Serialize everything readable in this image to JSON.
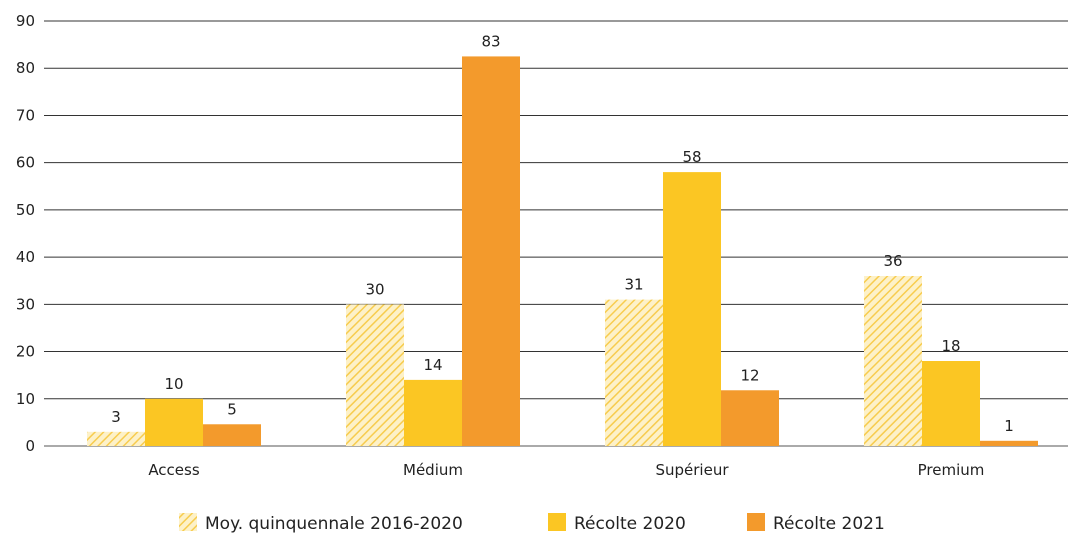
{
  "chart_data": {
    "type": "bar",
    "title": "",
    "xlabel": "",
    "ylabel": "",
    "ylim": [
      0,
      90
    ],
    "yticks": [
      0,
      10,
      20,
      30,
      40,
      50,
      60,
      70,
      80,
      90
    ],
    "grid": true,
    "legend_position": "bottom",
    "categories": [
      "Access",
      "Médium",
      "Supérieur",
      "Premium"
    ],
    "series": [
      {
        "name": "Moy. quinquennale 2016-2020",
        "values": [
          3,
          30,
          31,
          36
        ],
        "labels": [
          "3",
          "30",
          "31",
          "36"
        ],
        "color": "#F9D46A",
        "pattern": "hatched"
      },
      {
        "name": "Récolte 2020",
        "values": [
          10,
          14,
          58,
          18
        ],
        "labels": [
          "10",
          "14",
          "58",
          "18"
        ],
        "color": "#FBC623",
        "pattern": "solid"
      },
      {
        "name": "Récolte 2021",
        "values": [
          4.6,
          82.5,
          11.8,
          1.1
        ],
        "labels": [
          "5",
          "83",
          "12",
          "1"
        ],
        "color": "#F39A2C",
        "pattern": "solid"
      }
    ]
  }
}
